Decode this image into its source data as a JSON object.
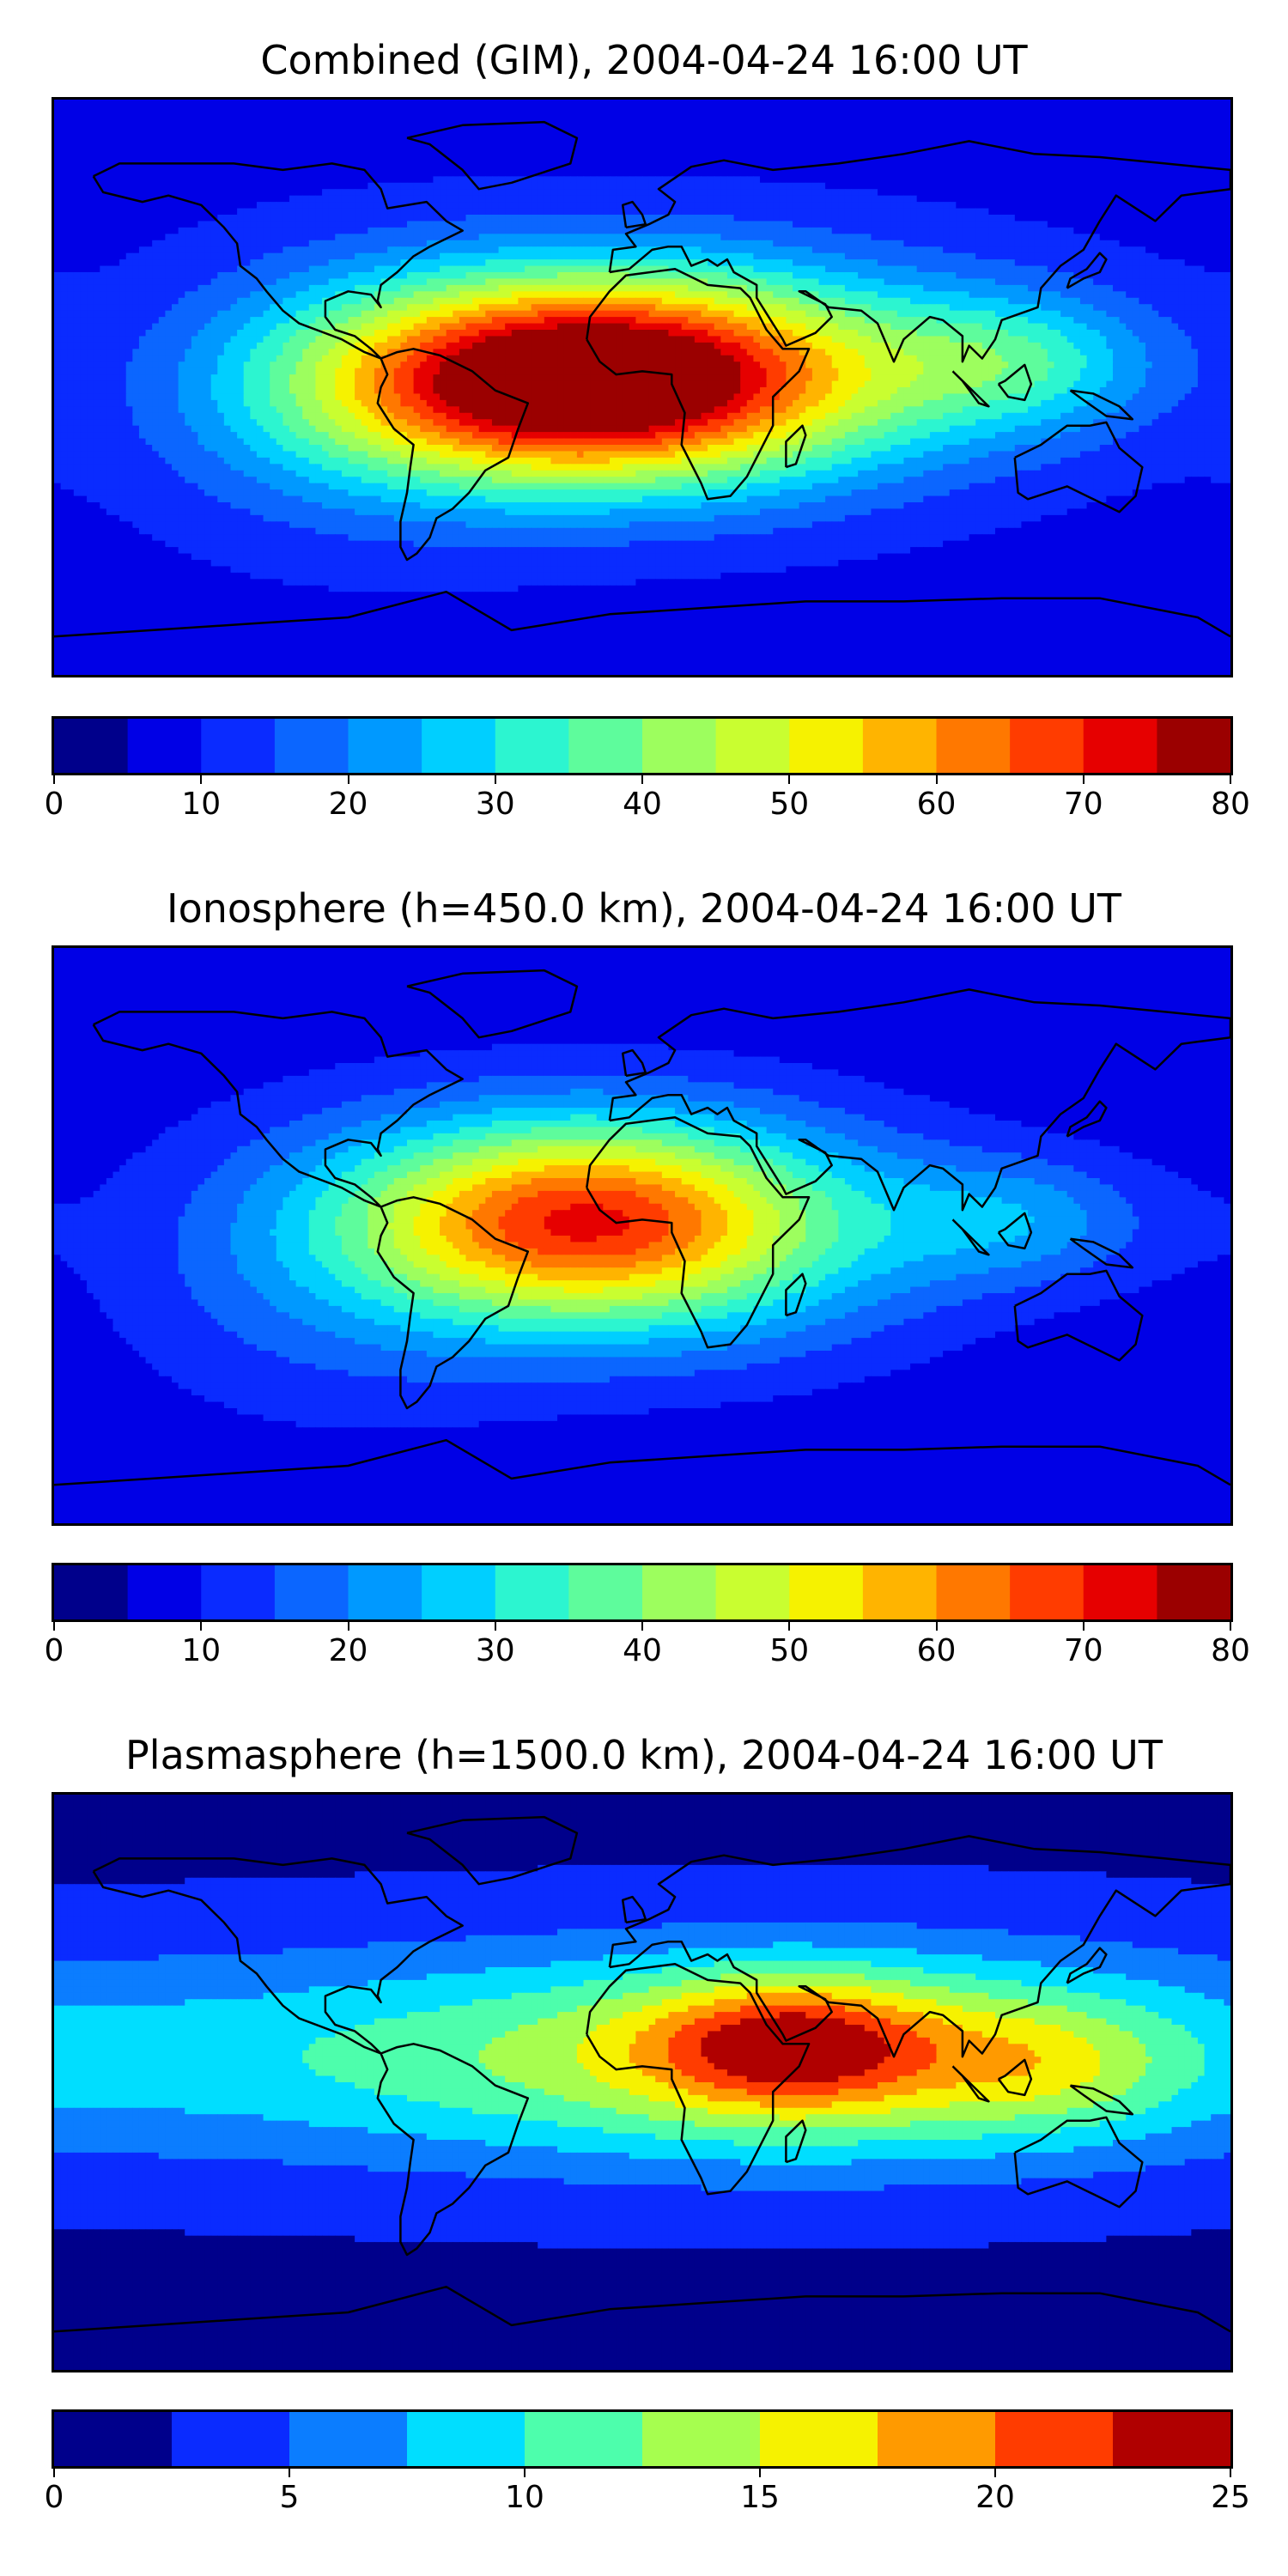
{
  "panels": [
    {
      "title": "Combined (GIM), 2004-04-24 16:00 UT",
      "colorbar": {
        "min": 0,
        "max": 80,
        "levels": 16,
        "ticks": [
          "0",
          "10",
          "20",
          "30",
          "40",
          "50",
          "60",
          "70",
          "80"
        ]
      },
      "field": {
        "background": 8,
        "blobs": [
          {
            "lon": -20,
            "lat": 2,
            "sx": 55,
            "sy": 22,
            "amp": 64
          },
          {
            "lon": 20,
            "lat": 5,
            "sx": 70,
            "sy": 25,
            "amp": 25
          },
          {
            "lon": 115,
            "lat": 8,
            "sx": 30,
            "sy": 15,
            "amp": 18
          },
          {
            "lon": -90,
            "lat": -5,
            "sx": 45,
            "sy": 30,
            "amp": 10
          }
        ]
      }
    },
    {
      "title": "Ionosphere  (h=450.0 km), 2004-04-24 16:00 UT",
      "colorbar": {
        "min": 0,
        "max": 80,
        "levels": 16,
        "ticks": [
          "0",
          "10",
          "20",
          "30",
          "40",
          "50",
          "60",
          "70",
          "80"
        ]
      },
      "field": {
        "background": 6,
        "blobs": [
          {
            "lon": -20,
            "lat": 5,
            "sx": 50,
            "sy": 22,
            "amp": 50
          },
          {
            "lon": 20,
            "lat": 0,
            "sx": 60,
            "sy": 28,
            "amp": 16
          },
          {
            "lon": 115,
            "lat": 5,
            "sx": 30,
            "sy": 14,
            "amp": 14
          },
          {
            "lon": -95,
            "lat": -10,
            "sx": 50,
            "sy": 35,
            "amp": 10
          }
        ]
      }
    },
    {
      "title": "Plasmasphere (h=1500.0 km), 2004-04-24 16:00 UT",
      "colorbar": {
        "min": 0,
        "max": 25,
        "levels": 10,
        "ticks": [
          "0",
          "5",
          "10",
          "15",
          "20",
          "25"
        ]
      },
      "field": {
        "background": 2,
        "blobs": [
          {
            "lon": 45,
            "lat": 12,
            "sx": 30,
            "sy": 14,
            "amp": 10
          },
          {
            "lon": 60,
            "lat": 8,
            "sx": 70,
            "sy": 22,
            "amp": 6
          },
          {
            "lon": 0,
            "lat": 8,
            "sx": 180,
            "sy": 24,
            "amp": 9
          },
          {
            "lon": 125,
            "lat": 5,
            "sx": 25,
            "sy": 14,
            "amp": 4
          }
        ]
      }
    }
  ],
  "colormap": [
    "#00008b",
    "#0000e6",
    "#0a2bff",
    "#0b66ff",
    "#0099ff",
    "#00cfff",
    "#2cf5d0",
    "#5efc9c",
    "#9dfe5e",
    "#c9fe30",
    "#f6f200",
    "#ffb400",
    "#ff7800",
    "#ff3c00",
    "#e60000",
    "#9b0000"
  ],
  "colormap_10": [
    "#00008b",
    "#0a2bff",
    "#0b7dff",
    "#00deff",
    "#4dfeac",
    "#a6fe4f",
    "#f6f200",
    "#ff9a00",
    "#ff3c00",
    "#b00000"
  ]
}
